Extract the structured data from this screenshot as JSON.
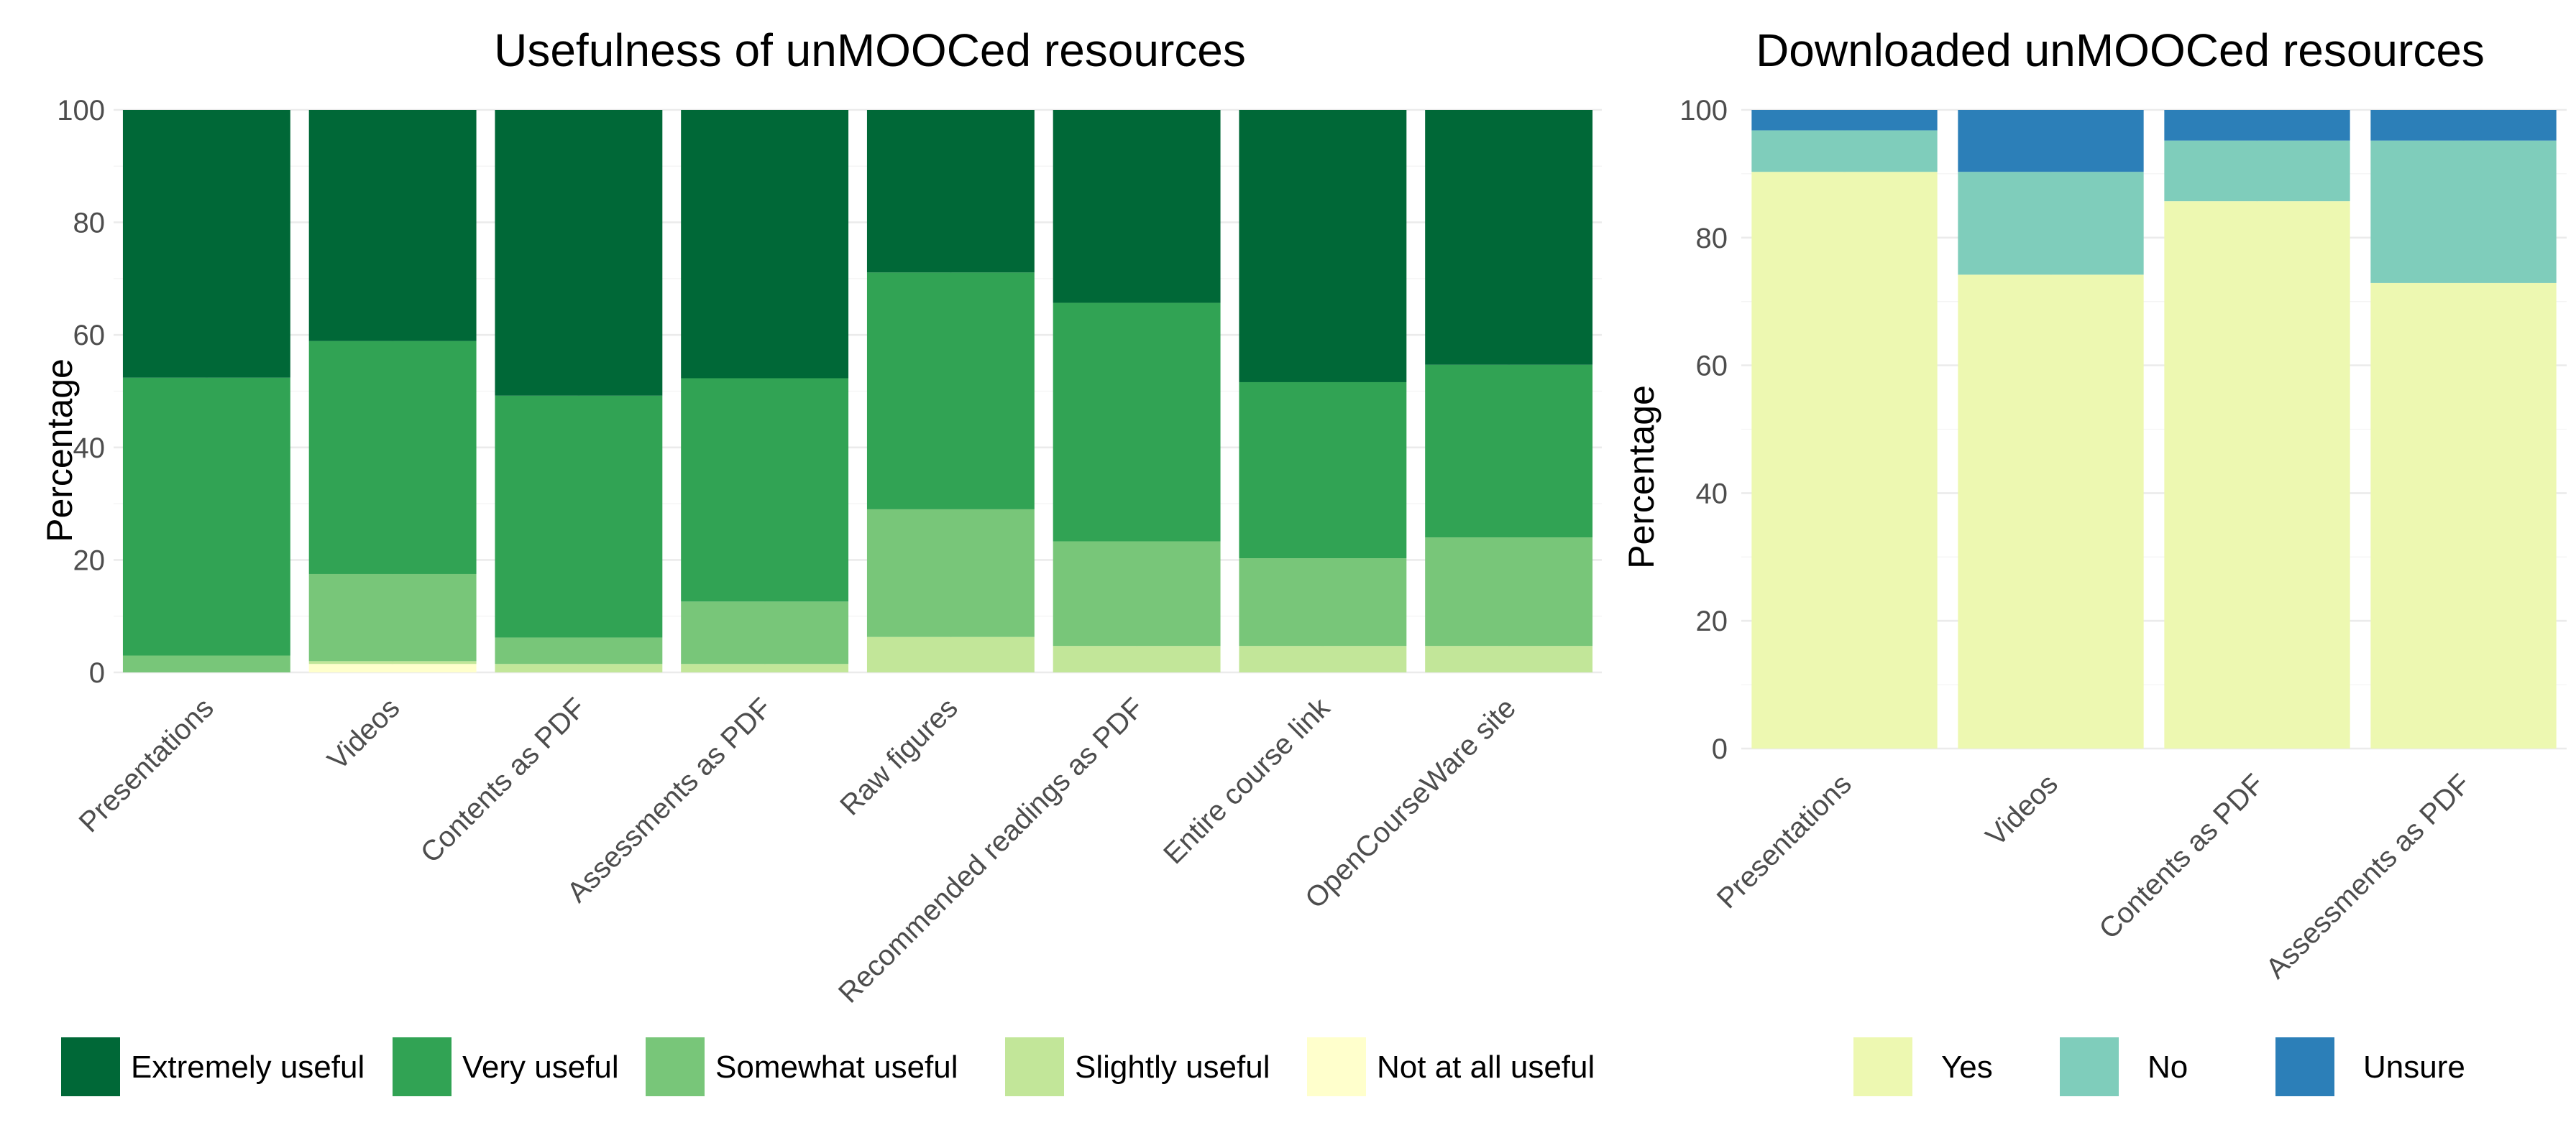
{
  "chart_data": [
    {
      "type": "bar",
      "stacked": true,
      "title": "Usefulness of unMOOCed resources",
      "xlabel": "",
      "ylabel": "Percentage",
      "ylim": [
        0,
        100
      ],
      "yticks": [
        "0",
        "20",
        "40",
        "60",
        "80",
        "100"
      ],
      "grid": true,
      "legend_position": "bottom",
      "categories": [
        "Presentations",
        "Videos",
        "Contents as PDF",
        "Assessments as PDF",
        "Raw figures",
        "Recommended readings as PDF",
        "Entire course link",
        "OpenCourseWare site"
      ],
      "series": [
        {
          "name": "Not at all useful",
          "color": "#ffffcc",
          "values": [
            0,
            1.5,
            0,
            0,
            0,
            0,
            0,
            0
          ]
        },
        {
          "name": "Slightly useful",
          "color": "#c2e699",
          "values": [
            0,
            0.5,
            1.5,
            1.5,
            6.3,
            4.7,
            4.7,
            4.7
          ]
        },
        {
          "name": "Somewhat useful",
          "color": "#78c679",
          "values": [
            3.0,
            15.5,
            4.7,
            11.1,
            22.7,
            18.6,
            15.6,
            19.3
          ]
        },
        {
          "name": "Very useful",
          "color": "#31a354",
          "values": [
            49.4,
            41.4,
            43.0,
            39.7,
            42.1,
            42.4,
            31.3,
            30.7
          ]
        },
        {
          "name": "Extremely useful",
          "color": "#006837",
          "values": [
            47.6,
            41.1,
            50.8,
            47.7,
            28.9,
            34.3,
            48.4,
            45.3
          ]
        }
      ],
      "legend": [
        "Extremely useful",
        "Very useful",
        "Somewhat useful",
        "Slightly useful",
        "Not at all useful"
      ]
    },
    {
      "type": "bar",
      "stacked": true,
      "title": "Downloaded unMOOCed resources",
      "xlabel": "",
      "ylabel": "Percentage",
      "ylim": [
        0,
        100
      ],
      "yticks": [
        "0",
        "20",
        "40",
        "60",
        "80",
        "100"
      ],
      "grid": true,
      "legend_position": "bottom",
      "categories": [
        "Presentations",
        "Videos",
        "Contents as PDF",
        "Assessments as PDF"
      ],
      "series": [
        {
          "name": "Yes",
          "color": "#edf8b1",
          "values": [
            90.3,
            74.2,
            85.7,
            72.9
          ]
        },
        {
          "name": "No",
          "color": "#7fcdbb",
          "values": [
            6.5,
            16.1,
            9.5,
            22.3
          ]
        },
        {
          "name": "Unsure",
          "color": "#2c7fb8",
          "values": [
            3.2,
            9.7,
            4.8,
            4.8
          ]
        }
      ],
      "legend": [
        "Yes",
        "No",
        "Unsure"
      ]
    }
  ]
}
